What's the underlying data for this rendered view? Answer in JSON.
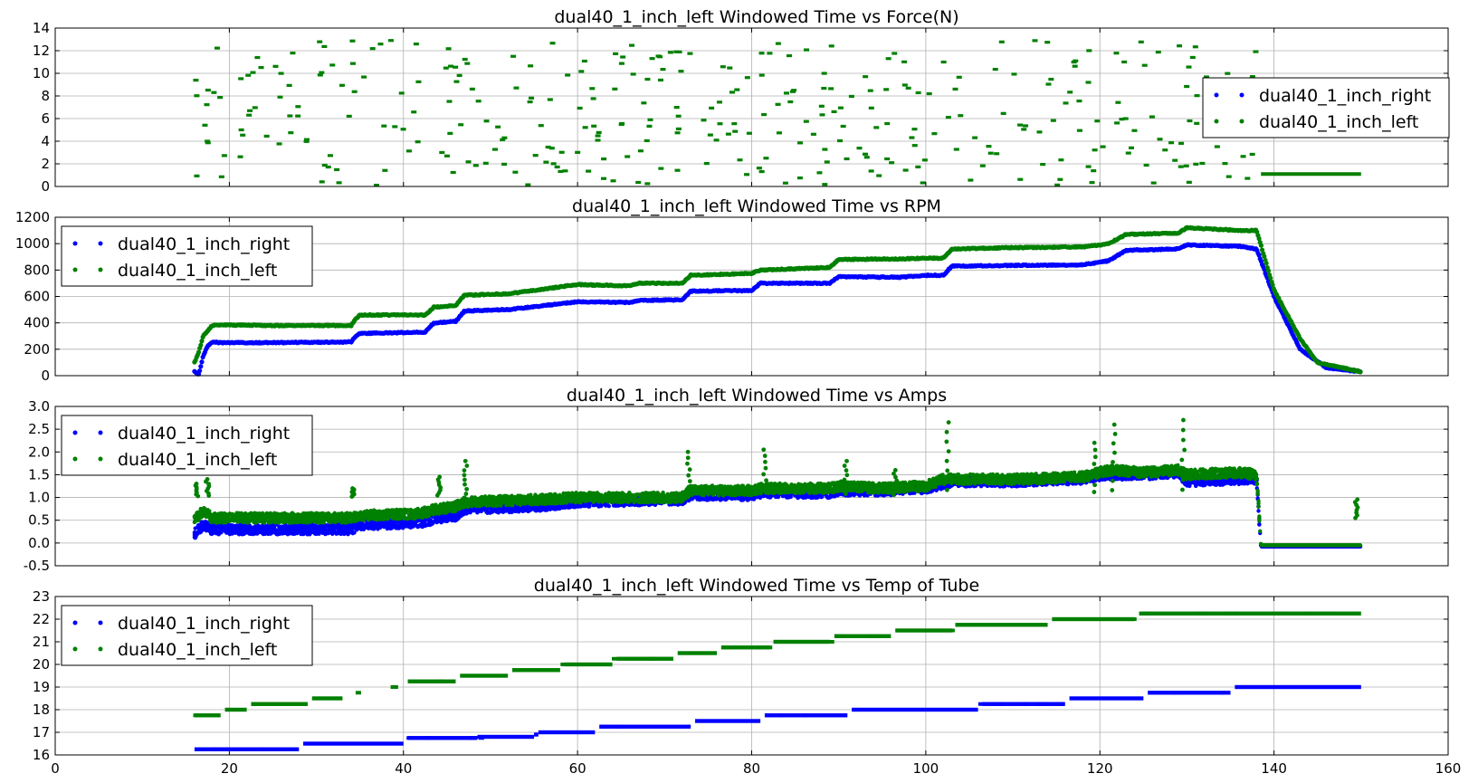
{
  "figure": {
    "xlim": [
      0,
      160
    ],
    "xticks": [
      0,
      20,
      40,
      60,
      80,
      100,
      120,
      140,
      160
    ],
    "colors": {
      "right": "#0000ff",
      "left": "#008000"
    }
  },
  "chart_data": [
    {
      "type": "scatter",
      "title": "dual40_1_inch_left Windowed Time vs Force(N)",
      "xlim": [
        0,
        160
      ],
      "ylim": [
        0,
        14
      ],
      "yticks": [
        0,
        2,
        4,
        6,
        8,
        10,
        12,
        14
      ],
      "grid": true,
      "legend": "right",
      "series": [
        {
          "name": "dual40_1_inch_right",
          "color": "#0000ff",
          "kind": "none",
          "points": []
        },
        {
          "name": "dual40_1_inch_left",
          "color": "#008000",
          "kind": "scatter",
          "x_range": [
            16,
            138
          ],
          "y_range": [
            0.1,
            13
          ],
          "tail": {
            "x": [
              138.5,
              150
            ],
            "y": 1.1
          }
        }
      ]
    },
    {
      "type": "line",
      "title": "dual40_1_inch_left Windowed Time vs RPM",
      "xlim": [
        0,
        160
      ],
      "ylim": [
        0,
        1200
      ],
      "yticks": [
        0,
        200,
        400,
        600,
        800,
        1000,
        1200
      ],
      "grid": true,
      "legend": "upper left",
      "series": [
        {
          "name": "dual40_1_inch_right",
          "color": "#0000ff",
          "x": [
            16,
            16.5,
            17,
            17.5,
            18,
            19,
            25,
            34,
            34.5,
            35,
            42.5,
            43.5,
            46,
            47,
            52,
            60,
            66,
            67,
            72,
            73,
            80,
            81,
            89,
            90,
            97,
            100,
            102,
            103,
            110,
            118,
            121,
            123,
            129,
            130,
            136,
            138,
            140,
            143,
            146,
            150
          ],
          "y": [
            30,
            10,
            150,
            220,
            255,
            250,
            250,
            255,
            300,
            320,
            330,
            400,
            410,
            490,
            500,
            560,
            555,
            570,
            575,
            640,
            645,
            700,
            700,
            750,
            745,
            760,
            760,
            830,
            835,
            840,
            870,
            950,
            960,
            990,
            980,
            960,
            600,
            200,
            60,
            30
          ]
        },
        {
          "name": "dual40_1_inch_left",
          "color": "#008000",
          "x": [
            16,
            16.5,
            17,
            18,
            19,
            25,
            34,
            34.5,
            35,
            42.5,
            43.5,
            46,
            47,
            52,
            60,
            66,
            67,
            72,
            73,
            80,
            81,
            89,
            90,
            97,
            100,
            102,
            103,
            110,
            118,
            121,
            123,
            129,
            130,
            136,
            138,
            140,
            143,
            145,
            150
          ],
          "y": [
            100,
            180,
            300,
            380,
            385,
            380,
            380,
            430,
            460,
            460,
            520,
            530,
            610,
            620,
            690,
            680,
            700,
            700,
            760,
            775,
            800,
            820,
            880,
            885,
            890,
            890,
            960,
            970,
            975,
            1000,
            1070,
            1080,
            1120,
            1100,
            1100,
            650,
            280,
            100,
            30
          ]
        }
      ]
    },
    {
      "type": "scatter",
      "title": "dual40_1_inch_left Windowed Time vs Amps",
      "xlim": [
        0,
        160
      ],
      "ylim": [
        -0.5,
        3
      ],
      "yticks": [
        -0.5,
        0.0,
        0.5,
        1.0,
        1.5,
        2.0,
        2.5,
        3.0
      ],
      "grid": true,
      "legend": "upper left",
      "series": [
        {
          "name": "dual40_1_inch_right",
          "color": "#0000ff",
          "x": [
            16,
            17,
            18,
            25,
            34,
            35,
            42,
            44,
            46,
            47,
            55,
            60,
            72,
            73,
            80,
            81,
            89,
            90,
            95,
            100,
            102,
            103,
            110,
            118,
            119,
            121,
            125,
            129,
            130,
            136,
            138,
            138.5,
            145,
            150
          ],
          "y": [
            0.2,
            0.4,
            0.3,
            0.3,
            0.3,
            0.4,
            0.45,
            0.55,
            0.6,
            0.75,
            0.8,
            0.9,
            0.95,
            1.05,
            1.05,
            1.1,
            1.1,
            1.15,
            1.15,
            1.2,
            1.3,
            1.35,
            1.35,
            1.4,
            1.45,
            1.5,
            1.5,
            1.55,
            1.35,
            1.4,
            1.4,
            -0.08,
            -0.08,
            -0.08
          ]
        },
        {
          "name": "dual40_1_inch_left",
          "color": "#008000",
          "x": [
            16,
            17,
            18,
            25,
            34,
            35,
            42,
            44,
            46,
            47,
            55,
            60,
            72,
            73,
            80,
            81,
            89,
            90,
            95,
            100,
            102,
            103,
            110,
            118,
            119,
            121,
            125,
            129,
            130,
            136,
            138,
            138.5,
            145,
            150
          ],
          "y": [
            0.5,
            0.7,
            0.55,
            0.55,
            0.55,
            0.6,
            0.65,
            0.75,
            0.8,
            0.9,
            0.95,
            1.0,
            1.0,
            1.15,
            1.15,
            1.2,
            1.2,
            1.25,
            1.2,
            1.25,
            1.4,
            1.4,
            1.4,
            1.45,
            1.5,
            1.6,
            1.55,
            1.6,
            1.5,
            1.55,
            1.5,
            -0.05,
            -0.05,
            -0.05
          ]
        }
      ],
      "spikes": [
        [
          16.2,
          1.3
        ],
        [
          17.5,
          1.4
        ],
        [
          34.2,
          1.2
        ],
        [
          44.1,
          1.45
        ],
        [
          47.1,
          1.8
        ],
        [
          72.8,
          2.0
        ],
        [
          81.5,
          2.05
        ],
        [
          90.8,
          1.8
        ],
        [
          96.5,
          1.6
        ],
        [
          102.5,
          2.65
        ],
        [
          119.5,
          2.2
        ],
        [
          121.6,
          2.6
        ],
        [
          129.6,
          2.7
        ],
        [
          149.5,
          0.55
        ]
      ]
    },
    {
      "type": "scatter",
      "title": "dual40_1_inch_left Windowed Time vs Temp of Tube",
      "xlim": [
        0,
        160
      ],
      "ylim": [
        16,
        23
      ],
      "yticks": [
        16,
        17,
        18,
        19,
        20,
        21,
        22,
        23
      ],
      "grid": true,
      "legend": "upper left",
      "series": [
        {
          "name": "dual40_1_inch_right",
          "color": "#0000ff",
          "x": [
            16,
            28,
            28.5,
            40,
            40.5,
            48,
            48.5,
            55,
            55.5,
            62,
            62.5,
            73,
            73.5,
            81,
            81.5,
            91,
            91.5,
            106,
            106.5,
            116,
            116.5,
            125,
            125.5,
            135,
            135.5,
            150
          ],
          "y": [
            16.25,
            16.25,
            16.5,
            16.5,
            16.75,
            16.75,
            16.8,
            16.9,
            17.0,
            17.1,
            17.25,
            17.3,
            17.5,
            17.55,
            17.75,
            17.75,
            18.0,
            18.0,
            18.25,
            18.25,
            18.5,
            18.5,
            18.75,
            18.75,
            19.0,
            19.0
          ]
        },
        {
          "name": "dual40_1_inch_left",
          "color": "#008000",
          "x": [
            16,
            19,
            19.5,
            22,
            22.5,
            29,
            29.5,
            33,
            33.5,
            40,
            40.5,
            46,
            46.5,
            52,
            52.5,
            58,
            58.5,
            64,
            64.5,
            71,
            71.5,
            76,
            76.5,
            82,
            82.5,
            89,
            89.5,
            96,
            96.5,
            103,
            103.5,
            114,
            114.5,
            124,
            124.5,
            150
          ],
          "y": [
            17.75,
            17.75,
            18.0,
            18.0,
            18.25,
            18.25,
            18.5,
            18.6,
            18.75,
            19.0,
            19.25,
            19.3,
            19.5,
            19.6,
            19.75,
            19.8,
            20.0,
            20.0,
            20.25,
            20.3,
            20.5,
            20.6,
            20.75,
            20.8,
            21.0,
            21.0,
            21.25,
            21.3,
            21.5,
            21.6,
            21.75,
            21.8,
            22.0,
            22.1,
            22.25,
            22.25
          ]
        }
      ]
    }
  ]
}
